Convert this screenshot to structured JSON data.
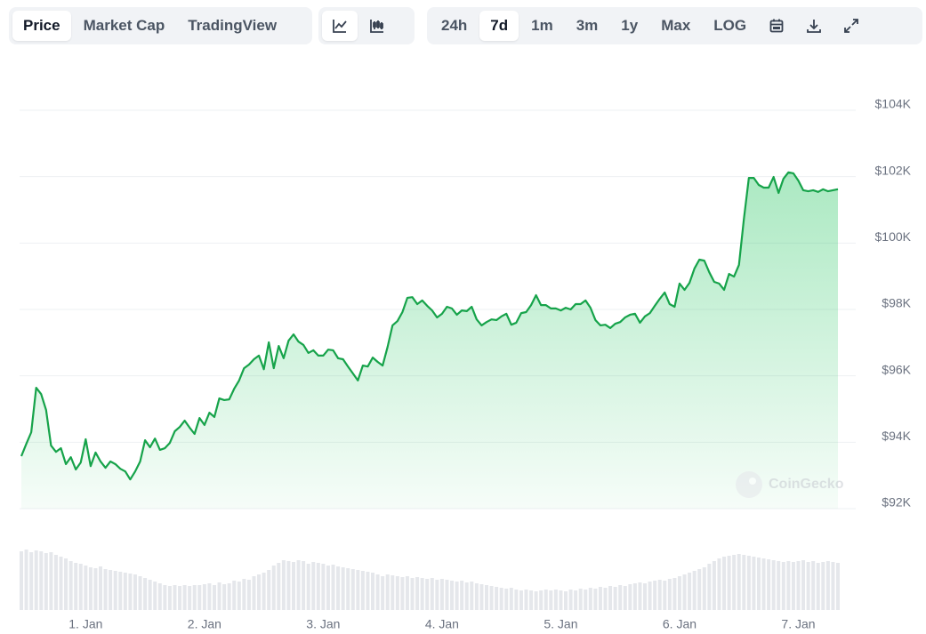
{
  "toolbar": {
    "views": [
      "Price",
      "Market Cap",
      "TradingView"
    ],
    "ranges": [
      "24h",
      "7d",
      "1m",
      "3m",
      "1y",
      "Max",
      "LOG"
    ]
  },
  "watermark": "CoinGecko",
  "chart_data": {
    "type": "line",
    "color": "#16a34a",
    "grid": true,
    "xlim": [
      -13,
      152
    ],
    "xticks": [
      {
        "value": 0,
        "label": "1. Jan"
      },
      {
        "value": 24,
        "label": "2. Jan"
      },
      {
        "value": 48,
        "label": "3. Jan"
      },
      {
        "value": 72,
        "label": "4. Jan"
      },
      {
        "value": 96,
        "label": "5. Jan"
      },
      {
        "value": 120,
        "label": "6. Jan"
      },
      {
        "value": 144,
        "label": "7. Jan"
      }
    ],
    "ylim": [
      92000,
      104000
    ],
    "yticks": [
      {
        "value": 92000,
        "label": "$92K"
      },
      {
        "value": 94000,
        "label": "$94K"
      },
      {
        "value": 96000,
        "label": "$96K"
      },
      {
        "value": 98000,
        "label": "$98K"
      },
      {
        "value": 100000,
        "label": "$100K"
      },
      {
        "value": 102000,
        "label": "$102K"
      },
      {
        "value": 104000,
        "label": "$104K"
      }
    ],
    "x": [
      -13,
      -12,
      -11,
      -10,
      -9,
      -8,
      -7,
      -6,
      -5,
      -4,
      -3,
      -2,
      -1,
      0,
      1,
      2,
      3,
      4,
      5,
      6,
      7,
      8,
      9,
      10,
      11,
      12,
      13,
      14,
      15,
      16,
      17,
      18,
      19,
      20,
      21,
      22,
      23,
      24,
      25,
      26,
      27,
      28,
      29,
      30,
      31,
      32,
      33,
      34,
      35,
      36,
      37,
      38,
      39,
      40,
      41,
      42,
      43,
      44,
      45,
      46,
      47,
      48,
      49,
      50,
      51,
      52,
      53,
      54,
      55,
      56,
      57,
      58,
      59,
      60,
      61,
      62,
      63,
      64,
      65,
      66,
      67,
      68,
      69,
      70,
      71,
      72,
      73,
      74,
      75,
      76,
      77,
      78,
      79,
      80,
      81,
      82,
      83,
      84,
      85,
      86,
      87,
      88,
      89,
      90,
      91,
      92,
      93,
      94,
      95,
      96,
      97,
      98,
      99,
      100,
      101,
      102,
      103,
      104,
      105,
      106,
      107,
      108,
      109,
      110,
      111,
      112,
      113,
      114,
      115,
      116,
      117,
      118,
      119,
      120,
      121,
      122,
      123,
      124,
      125,
      126,
      127,
      128,
      129,
      130,
      131,
      132,
      133,
      134,
      135,
      136,
      137,
      138,
      139,
      140,
      141,
      142,
      143,
      144,
      145,
      146,
      147,
      148,
      149,
      150,
      151,
      152
    ],
    "values": [
      93580,
      93950,
      94300,
      95640,
      95450,
      94970,
      93900,
      93710,
      93820,
      93340,
      93550,
      93180,
      93390,
      94090,
      93280,
      93690,
      93420,
      93230,
      93420,
      93340,
      93200,
      93120,
      92880,
      93120,
      93420,
      94060,
      93850,
      94110,
      93770,
      93820,
      93980,
      94330,
      94460,
      94650,
      94440,
      94250,
      94730,
      94520,
      94890,
      94760,
      95320,
      95270,
      95290,
      95610,
      95860,
      96230,
      96340,
      96500,
      96610,
      96200,
      97010,
      96230,
      96900,
      96530,
      97060,
      97250,
      97030,
      96930,
      96690,
      96770,
      96610,
      96610,
      96790,
      96770,
      96530,
      96500,
      96280,
      96070,
      95860,
      96310,
      96280,
      96550,
      96420,
      96310,
      96870,
      97520,
      97650,
      97920,
      98350,
      98370,
      98160,
      98270,
      98110,
      97970,
      97760,
      97870,
      98080,
      98030,
      97840,
      97970,
      97950,
      98080,
      97700,
      97520,
      97620,
      97700,
      97680,
      97790,
      97870,
      97540,
      97600,
      97890,
      97920,
      98130,
      98430,
      98130,
      98130,
      98030,
      98030,
      97970,
      98050,
      98000,
      98160,
      98160,
      98270,
      98050,
      97680,
      97520,
      97540,
      97440,
      97570,
      97620,
      97760,
      97840,
      97870,
      97600,
      97790,
      97890,
      98110,
      98320,
      98510,
      98160,
      98080,
      98780,
      98590,
      98800,
      99230,
      99500,
      99470,
      99120,
      98830,
      98780,
      98590,
      99070,
      98990,
      99340,
      100730,
      101960,
      101960,
      101750,
      101670,
      101670,
      101990,
      101510,
      101940,
      102130,
      102100,
      101880,
      101590,
      101560,
      101590,
      101540,
      101620,
      101560,
      101590,
      101620
    ],
    "volume": {
      "color": "#e5e7eb",
      "ylim": [
        0,
        80
      ],
      "values": [
        66,
        68,
        65,
        67,
        66,
        64,
        65,
        62,
        60,
        58,
        55,
        53,
        52,
        50,
        48,
        47,
        49,
        46,
        45,
        44,
        43,
        42,
        41,
        40,
        38,
        36,
        34,
        32,
        30,
        28,
        27,
        28,
        27,
        28,
        27,
        28,
        28,
        29,
        30,
        28,
        31,
        29,
        30,
        33,
        32,
        35,
        34,
        38,
        40,
        42,
        45,
        50,
        53,
        56,
        55,
        54,
        56,
        55,
        52,
        54,
        53,
        52,
        50,
        51,
        49,
        48,
        47,
        46,
        45,
        44,
        43,
        42,
        40,
        38,
        40,
        39,
        38,
        37,
        38,
        36,
        37,
        36,
        35,
        36,
        34,
        35,
        34,
        33,
        32,
        33,
        31,
        32,
        30,
        29,
        28,
        27,
        26,
        25,
        24,
        25,
        23,
        22,
        23,
        22,
        21,
        22,
        23,
        22,
        23,
        22,
        21,
        23,
        22,
        24,
        23,
        25,
        24,
        26,
        25,
        27,
        26,
        28,
        27,
        29,
        30,
        31,
        30,
        32,
        33,
        34,
        33,
        35,
        36,
        38,
        40,
        42,
        44,
        46,
        48,
        52,
        55,
        58,
        60,
        61,
        62,
        63,
        62,
        61,
        60,
        59,
        58,
        57,
        56,
        55,
        54,
        55,
        54,
        55,
        56,
        54,
        55,
        53,
        54,
        55,
        54,
        53
      ]
    }
  }
}
